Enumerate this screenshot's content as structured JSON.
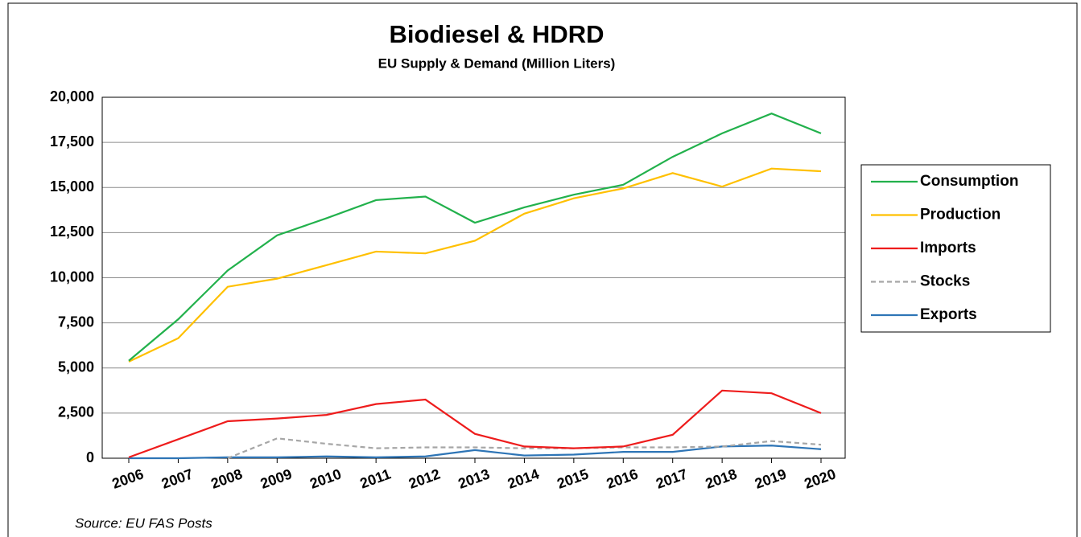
{
  "chart_data": {
    "type": "line",
    "title": "Biodiesel & HDRD",
    "subtitle": "EU Supply & Demand (Million Liters)",
    "source": "Source: EU FAS Posts",
    "categories": [
      "2006",
      "2007",
      "2008",
      "2009",
      "2010",
      "2011",
      "2012",
      "2013",
      "2014",
      "2015",
      "2016",
      "2017",
      "2018",
      "2019",
      "2020"
    ],
    "series": [
      {
        "name": "Consumption",
        "color": "#22b14c",
        "dash": false,
        "values": [
          5400,
          7700,
          10400,
          12350,
          13300,
          14300,
          14500,
          13050,
          13900,
          14600,
          15150,
          16700,
          18000,
          19100,
          18000
        ]
      },
      {
        "name": "Production",
        "color": "#ffc000",
        "dash": false,
        "values": [
          5350,
          6650,
          9500,
          9950,
          10700,
          11450,
          11350,
          12050,
          13550,
          14400,
          14950,
          15800,
          15050,
          16050,
          15900
        ]
      },
      {
        "name": "Imports",
        "color": "#ee1c1c",
        "dash": false,
        "values": [
          50,
          1050,
          2050,
          2200,
          2400,
          3000,
          3250,
          1350,
          650,
          550,
          650,
          1300,
          3750,
          3600,
          2500
        ]
      },
      {
        "name": "Stocks",
        "color": "#a6a6a6",
        "dash": true,
        "values": [
          null,
          null,
          0,
          1100,
          800,
          550,
          600,
          600,
          550,
          550,
          600,
          600,
          650,
          950,
          750
        ]
      },
      {
        "name": "Exports",
        "color": "#2e75b6",
        "dash": false,
        "values": [
          0,
          0,
          50,
          50,
          100,
          50,
          100,
          450,
          150,
          200,
          350,
          350,
          650,
          700,
          500
        ]
      }
    ],
    "ylim": [
      0,
      20000
    ],
    "yticks": [
      0,
      {
        "value": 2500,
        "label": "2,500"
      },
      {
        "value": 5000,
        "label": "5,000"
      },
      {
        "value": 7500,
        "label": "7,500"
      },
      {
        "value": 10000,
        "label": "10,000"
      },
      {
        "value": 12500,
        "label": "12,500"
      },
      {
        "value": 15000,
        "label": "15,000"
      },
      {
        "value": 17500,
        "label": "17,500"
      },
      {
        "value": 20000,
        "label": "20,000"
      }
    ],
    "grid": true,
    "legend": "right"
  }
}
